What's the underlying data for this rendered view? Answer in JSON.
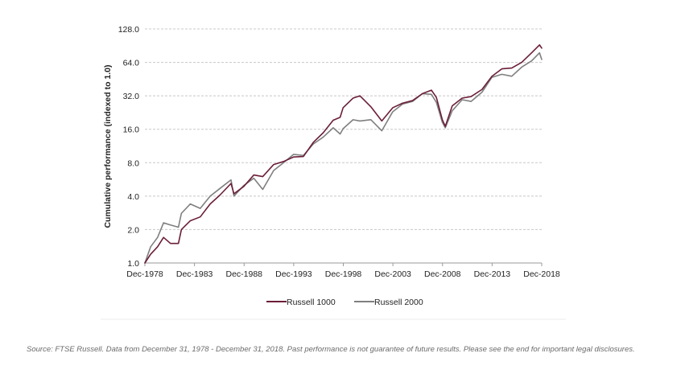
{
  "colors": {
    "russell_1000": "#6b1e3a",
    "russell_2000": "#7f7f7f",
    "grid": "#c8c8c8",
    "axis": "#9a9a9a",
    "text": "#222222",
    "caption": "#6b6b6b"
  },
  "caption": "Source: FTSE Russell. Data from December 31, 1978 - December 31, 2018. Past performance is not guarantee of future results. Please see the end for important legal disclosures.",
  "chart_data": {
    "type": "line",
    "title": "",
    "ylabel": "Cumulative performance (indexed to 1.0)",
    "xlabel": "",
    "y_scale": "log2",
    "ylim": [
      1.0,
      128.0
    ],
    "xlim": [
      "Dec-1978",
      "Dec-2018"
    ],
    "grid": "horizontal dashed",
    "legend_position": "bottom-center",
    "y_ticks": [
      "128.0",
      "64.0",
      "32.0",
      "16.0",
      "8.0",
      "4.0",
      "2.0",
      "1.0"
    ],
    "y_tick_values": [
      128,
      64,
      32,
      16,
      8,
      4,
      2,
      1
    ],
    "x_ticks": [
      "Dec-1978",
      "Dec-1983",
      "Dec-1988",
      "Dec-1993",
      "Dec-1998",
      "Dec-2003",
      "Dec-2008",
      "Dec-2013",
      "Dec-2018"
    ],
    "x_tick_values": [
      1978.92,
      1983.92,
      1988.92,
      1993.92,
      1998.92,
      2003.92,
      2008.92,
      2013.92,
      2018.92
    ],
    "series": [
      {
        "name": "Russell 1000",
        "color": "#6b1e3a",
        "x": [
          1978.92,
          1979.5,
          1980.2,
          1980.8,
          1981.5,
          1982.3,
          1982.6,
          1983.5,
          1984.5,
          1985.5,
          1986.5,
          1987.6,
          1987.9,
          1988.9,
          1989.9,
          1990.8,
          1991.9,
          1992.9,
          1993.9,
          1994.9,
          1995.9,
          1996.9,
          1997.9,
          1998.6,
          1998.9,
          1999.9,
          2000.6,
          2001.7,
          2002.8,
          2003.9,
          2004.9,
          2005.9,
          2006.9,
          2007.8,
          2008.3,
          2008.9,
          2009.2,
          2009.9,
          2010.9,
          2011.8,
          2012.9,
          2013.9,
          2014.9,
          2015.9,
          2016.9,
          2017.9,
          2018.7,
          2018.92
        ],
        "y": [
          1.0,
          1.2,
          1.4,
          1.7,
          1.5,
          1.5,
          2.0,
          2.4,
          2.6,
          3.4,
          4.1,
          5.2,
          4.2,
          4.9,
          6.2,
          6.0,
          7.7,
          8.2,
          9.0,
          9.1,
          12.2,
          14.9,
          19.3,
          20.5,
          25.0,
          30.5,
          32.0,
          25.5,
          19.0,
          25.0,
          27.5,
          29.0,
          33.5,
          36.0,
          31.0,
          19.5,
          17.0,
          26.0,
          30.5,
          31.5,
          36.5,
          48.0,
          56.0,
          57.0,
          64.0,
          78.0,
          92.0,
          86.0
        ]
      },
      {
        "name": "Russell 2000",
        "color": "#7f7f7f",
        "x": [
          1978.92,
          1979.5,
          1980.2,
          1980.8,
          1981.5,
          1982.3,
          1982.6,
          1983.5,
          1984.5,
          1985.5,
          1986.5,
          1987.6,
          1987.9,
          1988.9,
          1989.9,
          1990.8,
          1991.9,
          1992.9,
          1993.9,
          1994.9,
          1995.9,
          1996.9,
          1997.9,
          1998.6,
          1998.9,
          1999.9,
          2000.6,
          2001.7,
          2002.8,
          2003.9,
          2004.9,
          2005.9,
          2006.9,
          2007.8,
          2008.3,
          2008.9,
          2009.2,
          2009.9,
          2010.9,
          2011.8,
          2012.9,
          2013.9,
          2014.9,
          2015.9,
          2016.9,
          2017.9,
          2018.7,
          2018.92
        ],
        "y": [
          1.0,
          1.4,
          1.7,
          2.3,
          2.2,
          2.1,
          2.8,
          3.4,
          3.1,
          4.0,
          4.7,
          5.6,
          4.0,
          5.0,
          5.8,
          4.6,
          6.8,
          8.0,
          9.5,
          9.3,
          11.8,
          13.6,
          16.5,
          14.5,
          16.2,
          19.5,
          19.0,
          19.5,
          15.5,
          23.0,
          27.0,
          28.5,
          33.5,
          33.0,
          28.0,
          18.5,
          16.5,
          23.5,
          29.5,
          28.5,
          34.5,
          47.0,
          50.0,
          48.0,
          58.0,
          66.0,
          78.0,
          68.0
        ]
      }
    ]
  }
}
